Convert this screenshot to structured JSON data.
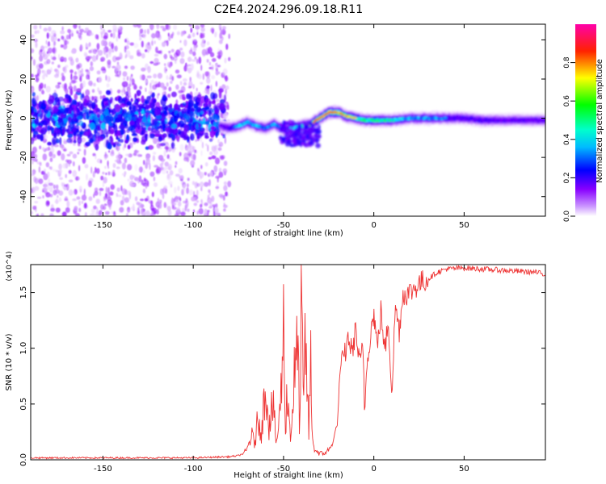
{
  "title": "C2E4.2024.296.09.18.R11",
  "chart_data": [
    {
      "type": "heatmap",
      "xlabel": "Height of straight line (km)",
      "ylabel": "Frequency (Hz)",
      "xlim": [
        -190,
        95
      ],
      "ylim": [
        -50,
        48
      ],
      "x_ticks": [
        -150,
        -100,
        -50,
        0,
        50
      ],
      "y_ticks": [
        -40,
        -20,
        0,
        20,
        40
      ],
      "colorbar": {
        "label": "Normalized spectral amplitude",
        "range": [
          0,
          1
        ],
        "ticks": [
          "0.0",
          "0.2",
          "0.4",
          "0.6",
          "0.8"
        ],
        "colormap": [
          "#ffffff",
          "#8800ff",
          "#0000ff",
          "#00ffff",
          "#00ff00",
          "#ffff00",
          "#ff0000",
          "#ff00aa"
        ]
      },
      "ridge": {
        "x": [
          -85,
          -80,
          -75,
          -70,
          -65,
          -60,
          -55,
          -50,
          -45,
          -40,
          -35,
          -30,
          -25,
          -20,
          -15,
          -10,
          -5,
          0,
          5,
          10,
          20,
          30,
          40,
          50,
          60,
          70,
          80,
          90,
          95
        ],
        "y": [
          -4,
          -5,
          -4,
          -2,
          -4,
          -5,
          -3,
          -6,
          -5,
          -4,
          -3,
          0,
          3,
          3,
          1,
          0,
          -1,
          -1,
          -1,
          -1,
          0,
          0,
          0,
          0,
          -1,
          -1,
          -1,
          -1,
          -1
        ],
        "amplitude": [
          0.35,
          0.45,
          0.55,
          0.6,
          0.55,
          0.5,
          0.55,
          0.45,
          0.6,
          0.7,
          0.8,
          0.85,
          0.9,
          0.85,
          0.8,
          0.75,
          0.7,
          0.75,
          0.7,
          0.65,
          0.55,
          0.55,
          0.5,
          0.45,
          0.45,
          0.4,
          0.4,
          0.4,
          0.4
        ]
      },
      "noise_region_x": [
        -190,
        -85
      ]
    },
    {
      "type": "line",
      "xlabel": "Height of straight line (km)",
      "ylabel": "SNR (10 * v/v)",
      "y_multiplier_label": "(x10^4)",
      "xlim": [
        -190,
        95
      ],
      "ylim": [
        0,
        1.75
      ],
      "x_ticks": [
        -150,
        -100,
        -50,
        0,
        50
      ],
      "y_ticks": [
        "0.0",
        "0.5",
        "1.0",
        "1.5"
      ],
      "series": [
        {
          "color": "#ee3333",
          "x": [
            -190,
            -150,
            -100,
            -80,
            -75,
            -72,
            -70,
            -68,
            -66,
            -64,
            -62,
            -60,
            -58,
            -56,
            -54,
            -52,
            -50,
            -49,
            -48,
            -46,
            -44,
            -42,
            -41,
            -40,
            -39,
            -38,
            -36,
            -35,
            -34,
            -32,
            -30,
            -28,
            -26,
            -24,
            -22,
            -20,
            -19,
            -18,
            -16,
            -14,
            -12,
            -10,
            -8,
            -6,
            -5,
            -4,
            -2,
            0,
            2,
            4,
            6,
            8,
            10,
            12,
            14,
            16,
            20,
            25,
            30,
            35,
            40,
            50,
            60,
            70,
            80,
            90,
            95
          ],
          "y": [
            0.01,
            0.01,
            0.01,
            0.02,
            0.03,
            0.05,
            0.1,
            0.22,
            0.15,
            0.38,
            0.25,
            0.72,
            0.3,
            0.5,
            0.15,
            0.4,
            1.18,
            0.3,
            0.6,
            0.2,
            0.75,
            1.0,
            0.2,
            1.6,
            0.3,
            1.1,
            0.25,
            0.9,
            0.15,
            0.08,
            0.06,
            0.05,
            0.08,
            0.1,
            0.2,
            0.35,
            0.75,
            0.85,
            0.95,
            1.1,
            0.95,
            1.18,
            0.85,
            1.0,
            0.4,
            0.85,
            1.12,
            1.32,
            1.0,
            1.35,
            0.95,
            1.25,
            0.6,
            1.4,
            1.15,
            1.48,
            1.5,
            1.58,
            1.62,
            1.68,
            1.71,
            1.72,
            1.71,
            1.7,
            1.69,
            1.68,
            1.66
          ]
        }
      ]
    }
  ]
}
